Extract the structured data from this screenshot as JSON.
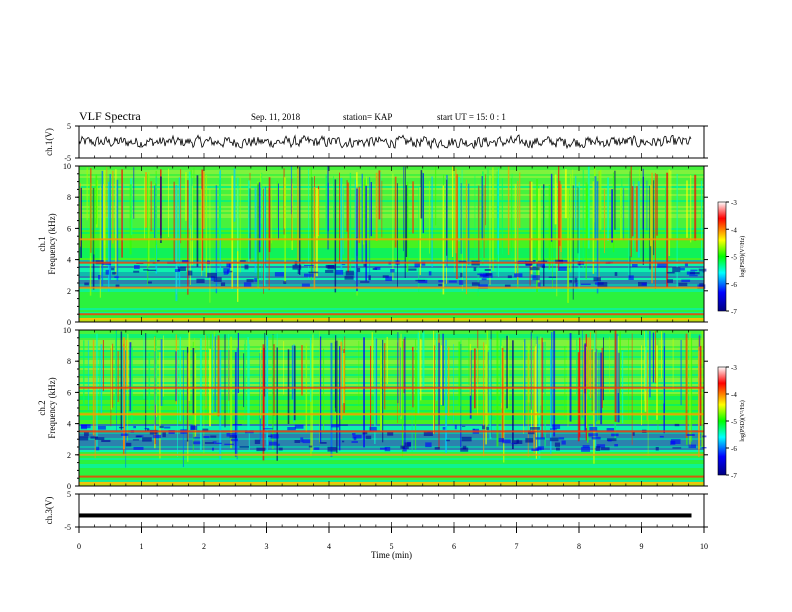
{
  "header": {
    "title": "VLF Spectra",
    "date": "Sep. 11, 2018",
    "station": "station= KAP",
    "start": "start  UT =   15: 0   : 1"
  },
  "chart_data": [
    {
      "type": "line",
      "ylabel": "ch.1(V)",
      "ylim": [
        -5,
        5
      ],
      "yticks": [
        "5",
        "-5"
      ],
      "x": [
        0,
        9.8
      ],
      "description_of_series": "noisy waveform around 0 V spanning about ±2 V"
    },
    {
      "type": "heatmap",
      "ylabel": "ch.1\nFrequency (kHz)",
      "ylim": [
        0,
        10
      ],
      "yticks": [
        "0",
        "2",
        "4",
        "6",
        "8",
        "10"
      ],
      "xlim": [
        0,
        10
      ],
      "colorbar": {
        "label": "log(PSD)(V²/Hz)",
        "ticks": [
          "-3",
          "-4",
          "-5",
          "-6",
          "-7"
        ],
        "range": [
          -7,
          -3
        ],
        "colormap": [
          "#000080",
          "#0000ff",
          "#00ffff",
          "#00ff00",
          "#ffff00",
          "#ff0000",
          "#ffffff"
        ]
      },
      "bands_khz": [
        0.2,
        0.5,
        2.2,
        3.8,
        5.3
      ]
    },
    {
      "type": "heatmap",
      "ylabel": "ch.2\nFrequency (kHz)",
      "ylim": [
        0,
        10
      ],
      "yticks": [
        "0",
        "2",
        "4",
        "6",
        "8",
        "10"
      ],
      "xlim": [
        0,
        10
      ],
      "colorbar": {
        "label": "log(PSD)(V²/Hz)",
        "ticks": [
          "-3",
          "-4",
          "-5",
          "-6",
          "-7"
        ],
        "range": [
          -7,
          -3
        ],
        "colormap": [
          "#000080",
          "#0000ff",
          "#00ffff",
          "#00ff00",
          "#ffff00",
          "#ff0000",
          "#ffffff"
        ]
      },
      "bands_khz": [
        0.2,
        0.6,
        2.0,
        3.5,
        4.6,
        6.3
      ]
    },
    {
      "type": "line",
      "ylabel": "ch.3(V)",
      "ylim": [
        -5,
        5
      ],
      "yticks": [
        "5",
        "-5"
      ],
      "x": [
        0,
        9.8
      ],
      "y_constant": -1.5
    }
  ],
  "xaxis": {
    "label": "Time (min)",
    "ticks": [
      "0",
      "1",
      "2",
      "3",
      "4",
      "5",
      "6",
      "7",
      "8",
      "9",
      "10"
    ],
    "xlim": [
      0,
      10
    ]
  }
}
